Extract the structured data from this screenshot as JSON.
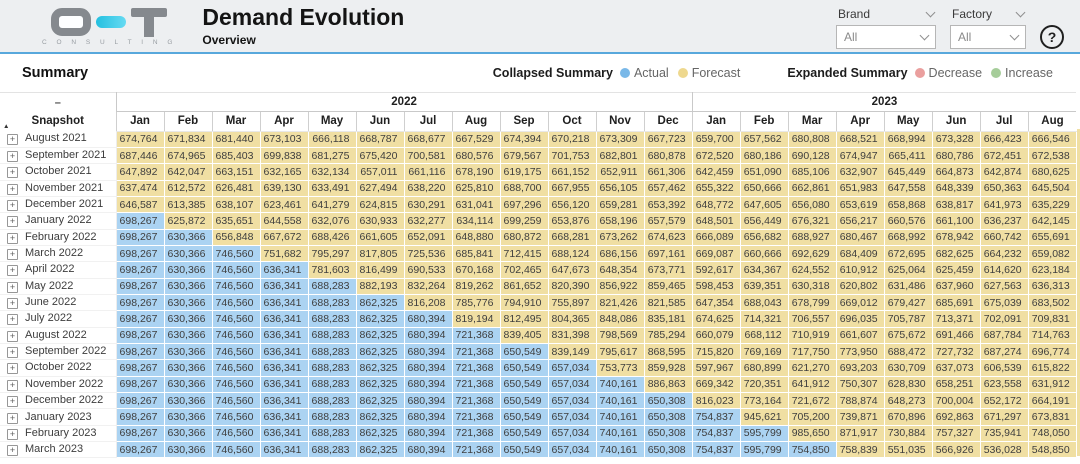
{
  "header": {
    "logo_sub": "C O N S U L T I N G",
    "title": "Demand Evolution",
    "subtitle": "Overview",
    "filters": [
      {
        "label": "Brand",
        "value": "All"
      },
      {
        "label": "Factory",
        "value": "All"
      }
    ],
    "help_label": "?"
  },
  "summary": {
    "title": "Summary",
    "legend": [
      {
        "group": "Collapsed Summary",
        "items": [
          {
            "label": "Actual",
            "color": "#79b8e8"
          },
          {
            "label": "Forecast",
            "color": "#eed88e"
          }
        ]
      },
      {
        "group": "Expanded Summary",
        "items": [
          {
            "label": "Decrease",
            "color": "#ea9f9e"
          },
          {
            "label": "Increase",
            "color": "#a6cd9a"
          }
        ]
      }
    ]
  },
  "table": {
    "collapse_glyph": "–",
    "sort_glyph": "▲",
    "expand_glyph": "+",
    "row_header": "Snapshot",
    "year_groups": [
      {
        "label": "2022",
        "span": 12
      },
      {
        "label": "2023",
        "span": 8
      }
    ],
    "months": [
      "Jan",
      "Feb",
      "Mar",
      "Apr",
      "May",
      "Jun",
      "Jul",
      "Aug",
      "Sep",
      "Oct",
      "Nov",
      "Dec",
      "Jan",
      "Feb",
      "Mar",
      "Apr",
      "May",
      "Jun",
      "Jul",
      "Aug"
    ],
    "colors": {
      "actual_cell": "#abd3f2",
      "forecast_cell": "#f0dfa3"
    },
    "rows": [
      {
        "label": "August 2021",
        "actual_count": 0,
        "values": [
          "674,764",
          "671,834",
          "681,440",
          "673,103",
          "666,118",
          "668,787",
          "668,677",
          "667,529",
          "674,394",
          "670,218",
          "673,309",
          "667,723",
          "659,700",
          "657,562",
          "680,808",
          "668,521",
          "668,994",
          "673,328",
          "666,423",
          "666,546"
        ]
      },
      {
        "label": "September 2021",
        "actual_count": 0,
        "values": [
          "687,446",
          "674,965",
          "685,403",
          "699,838",
          "681,275",
          "675,420",
          "700,581",
          "680,576",
          "679,567",
          "701,753",
          "682,801",
          "680,878",
          "672,520",
          "680,186",
          "690,128",
          "674,947",
          "665,411",
          "680,786",
          "672,451",
          "672,538"
        ]
      },
      {
        "label": "October 2021",
        "actual_count": 0,
        "values": [
          "647,892",
          "642,047",
          "663,151",
          "632,165",
          "632,134",
          "657,011",
          "661,116",
          "678,190",
          "619,175",
          "661,152",
          "652,911",
          "661,306",
          "642,459",
          "651,090",
          "685,106",
          "632,907",
          "645,449",
          "664,873",
          "642,874",
          "680,625"
        ]
      },
      {
        "label": "November 2021",
        "actual_count": 0,
        "values": [
          "637,474",
          "612,572",
          "626,481",
          "639,130",
          "633,491",
          "627,494",
          "638,220",
          "625,810",
          "688,700",
          "667,955",
          "656,105",
          "657,462",
          "655,322",
          "650,666",
          "662,861",
          "651,983",
          "647,558",
          "648,339",
          "650,363",
          "645,504"
        ]
      },
      {
        "label": "December 2021",
        "actual_count": 0,
        "values": [
          "646,587",
          "613,385",
          "638,107",
          "623,461",
          "641,279",
          "624,815",
          "630,291",
          "631,041",
          "697,296",
          "656,120",
          "659,281",
          "653,392",
          "648,772",
          "647,605",
          "656,080",
          "653,619",
          "658,868",
          "638,817",
          "641,973",
          "635,229"
        ]
      },
      {
        "label": "January 2022",
        "actual_count": 1,
        "values": [
          "698,267",
          "625,872",
          "635,651",
          "644,558",
          "632,076",
          "630,933",
          "632,277",
          "634,114",
          "699,259",
          "653,876",
          "658,196",
          "657,579",
          "648,501",
          "656,449",
          "676,321",
          "656,217",
          "660,576",
          "661,100",
          "636,237",
          "642,145"
        ]
      },
      {
        "label": "February 2022",
        "actual_count": 2,
        "values": [
          "698,267",
          "630,366",
          "656,848",
          "667,672",
          "688,426",
          "661,605",
          "652,091",
          "648,880",
          "680,872",
          "668,281",
          "673,262",
          "674,623",
          "666,089",
          "656,682",
          "688,927",
          "680,467",
          "668,992",
          "678,942",
          "660,742",
          "655,691"
        ]
      },
      {
        "label": "March 2022",
        "actual_count": 3,
        "values": [
          "698,267",
          "630,366",
          "746,560",
          "751,682",
          "795,297",
          "817,805",
          "725,536",
          "685,841",
          "712,415",
          "688,124",
          "686,156",
          "697,161",
          "669,087",
          "660,666",
          "692,629",
          "684,409",
          "672,695",
          "682,625",
          "664,232",
          "659,082"
        ]
      },
      {
        "label": "April 2022",
        "actual_count": 4,
        "values": [
          "698,267",
          "630,366",
          "746,560",
          "636,341",
          "781,603",
          "816,499",
          "690,533",
          "670,168",
          "702,465",
          "647,673",
          "648,354",
          "673,771",
          "592,617",
          "634,367",
          "624,552",
          "610,912",
          "625,064",
          "625,459",
          "614,620",
          "623,184"
        ]
      },
      {
        "label": "May 2022",
        "actual_count": 5,
        "values": [
          "698,267",
          "630,366",
          "746,560",
          "636,341",
          "688,283",
          "882,193",
          "832,264",
          "819,262",
          "861,652",
          "820,390",
          "856,922",
          "859,465",
          "598,453",
          "639,351",
          "630,318",
          "620,802",
          "631,486",
          "637,960",
          "627,563",
          "636,313"
        ]
      },
      {
        "label": "June 2022",
        "actual_count": 6,
        "values": [
          "698,267",
          "630,366",
          "746,560",
          "636,341",
          "688,283",
          "862,325",
          "816,208",
          "785,776",
          "794,910",
          "755,897",
          "821,426",
          "821,585",
          "647,354",
          "688,043",
          "678,799",
          "669,012",
          "679,427",
          "685,691",
          "675,039",
          "683,502"
        ]
      },
      {
        "label": "July 2022",
        "actual_count": 7,
        "values": [
          "698,267",
          "630,366",
          "746,560",
          "636,341",
          "688,283",
          "862,325",
          "680,394",
          "819,194",
          "812,495",
          "804,365",
          "848,086",
          "835,181",
          "674,625",
          "714,321",
          "706,557",
          "696,035",
          "705,787",
          "713,371",
          "702,091",
          "709,831"
        ]
      },
      {
        "label": "August 2022",
        "actual_count": 8,
        "values": [
          "698,267",
          "630,366",
          "746,560",
          "636,341",
          "688,283",
          "862,325",
          "680,394",
          "721,368",
          "839,405",
          "831,398",
          "798,569",
          "785,294",
          "660,079",
          "668,112",
          "710,919",
          "661,607",
          "675,672",
          "691,466",
          "687,784",
          "714,763"
        ]
      },
      {
        "label": "September 2022",
        "actual_count": 9,
        "values": [
          "698,267",
          "630,366",
          "746,560",
          "636,341",
          "688,283",
          "862,325",
          "680,394",
          "721,368",
          "650,549",
          "839,149",
          "795,617",
          "868,595",
          "715,820",
          "769,169",
          "717,750",
          "773,950",
          "688,472",
          "727,732",
          "687,274",
          "696,774"
        ]
      },
      {
        "label": "October 2022",
        "actual_count": 10,
        "values": [
          "698,267",
          "630,366",
          "746,560",
          "636,341",
          "688,283",
          "862,325",
          "680,394",
          "721,368",
          "650,549",
          "657,034",
          "753,773",
          "859,928",
          "597,967",
          "680,899",
          "621,270",
          "693,203",
          "630,709",
          "637,073",
          "606,539",
          "615,822"
        ]
      },
      {
        "label": "November 2022",
        "actual_count": 11,
        "values": [
          "698,267",
          "630,366",
          "746,560",
          "636,341",
          "688,283",
          "862,325",
          "680,394",
          "721,368",
          "650,549",
          "657,034",
          "740,161",
          "886,863",
          "669,342",
          "720,351",
          "641,912",
          "750,307",
          "628,830",
          "658,251",
          "623,558",
          "631,912"
        ]
      },
      {
        "label": "December 2022",
        "actual_count": 12,
        "values": [
          "698,267",
          "630,366",
          "746,560",
          "636,341",
          "688,283",
          "862,325",
          "680,394",
          "721,368",
          "650,549",
          "657,034",
          "740,161",
          "650,308",
          "816,023",
          "773,164",
          "721,672",
          "788,874",
          "648,273",
          "700,004",
          "652,172",
          "664,191"
        ]
      },
      {
        "label": "January 2023",
        "actual_count": 13,
        "values": [
          "698,267",
          "630,366",
          "746,560",
          "636,341",
          "688,283",
          "862,325",
          "680,394",
          "721,368",
          "650,549",
          "657,034",
          "740,161",
          "650,308",
          "754,837",
          "945,621",
          "705,200",
          "739,871",
          "670,896",
          "692,863",
          "671,297",
          "673,831"
        ]
      },
      {
        "label": "February 2023",
        "actual_count": 14,
        "values": [
          "698,267",
          "630,366",
          "746,560",
          "636,341",
          "688,283",
          "862,325",
          "680,394",
          "721,368",
          "650,549",
          "657,034",
          "740,161",
          "650,308",
          "754,837",
          "595,799",
          "985,650",
          "871,917",
          "730,884",
          "757,327",
          "735,941",
          "748,050"
        ]
      },
      {
        "label": "March 2023",
        "actual_count": 15,
        "values": [
          "698,267",
          "630,366",
          "746,560",
          "636,341",
          "688,283",
          "862,325",
          "680,394",
          "721,368",
          "650,549",
          "657,034",
          "740,161",
          "650,308",
          "754,837",
          "595,799",
          "754,850",
          "758,839",
          "551,035",
          "566,926",
          "536,028",
          "548,850"
        ]
      }
    ]
  }
}
